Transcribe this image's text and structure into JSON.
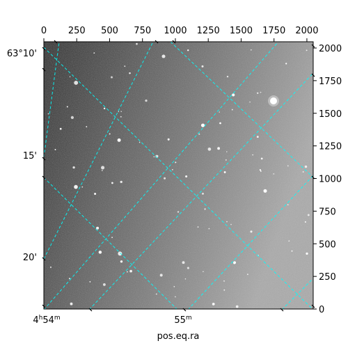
{
  "chart_data": {
    "type": "image",
    "title": "",
    "xlabel": "pos.eq.ra",
    "ylabel": "",
    "pixel_axes": {
      "x_ticks": [
        0,
        250,
        500,
        750,
        1000,
        1250,
        1500,
        1750,
        2000
      ],
      "y_ticks": [
        0,
        250,
        500,
        750,
        1000,
        1250,
        1500,
        1750,
        2000
      ],
      "xlim": [
        0,
        2048
      ],
      "ylim": [
        0,
        2048
      ]
    },
    "world_axes": {
      "ra_ticks": [
        {
          "hour": "4",
          "min": "54",
          "label": "4h54m"
        },
        {
          "hour": "",
          "min": "55",
          "label": "55m"
        }
      ],
      "dec_ticks": [
        "63°10'",
        "15'",
        "20'"
      ]
    },
    "grid": true,
    "grid_color": "#00ffff",
    "image_description_colors": {
      "sky_dark": "#3a3a3a",
      "sky_light": "#a9a9a9"
    }
  }
}
